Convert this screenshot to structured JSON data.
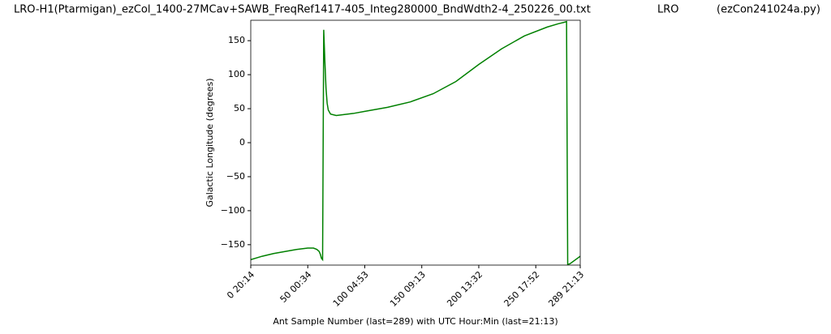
{
  "chart_data": {
    "type": "line",
    "title": "LRO-H1(Ptarmigan)_ezCol_1400-27MCav+SAWB_FreqRef1417-405_Integ280000_BndWdth2-4_250226_00.txt",
    "title_center": "LRO",
    "title_right": "(ezCon241024a.py)",
    "xlabel": "Ant Sample Number (last=289) with UTC Hour:Min (last=21:13)",
    "ylabel": "Galactic Longitude (degrees)",
    "color": "#008000",
    "x": [
      0,
      10,
      20,
      30,
      40,
      50,
      55,
      58,
      60,
      61,
      62,
      63,
      64,
      65,
      66,
      67,
      68,
      70,
      75,
      80,
      90,
      100,
      120,
      140,
      160,
      180,
      200,
      220,
      240,
      260,
      270,
      275,
      277,
      278,
      280,
      289
    ],
    "values": [
      -172,
      -167,
      -163,
      -160,
      -157,
      -155,
      -155,
      -157,
      -160,
      -164,
      -170,
      -172,
      166,
      120,
      80,
      58,
      48,
      42,
      40,
      41,
      43,
      46,
      52,
      60,
      72,
      90,
      115,
      138,
      157,
      170,
      175,
      177,
      178,
      -179,
      -178,
      -167
    ],
    "xlim": [
      0,
      289
    ],
    "xticks": [
      {
        "value": 0,
        "label": "0 20:14"
      },
      {
        "value": 50,
        "label": "50 00:34"
      },
      {
        "value": 100,
        "label": "100 04:53"
      },
      {
        "value": 150,
        "label": "150 09:13"
      },
      {
        "value": 200,
        "label": "200 13:32"
      },
      {
        "value": 250,
        "label": "250 17:52"
      },
      {
        "value": 289,
        "label": "289 21:13"
      }
    ],
    "ylim": [
      -180,
      180
    ],
    "yticks": [
      {
        "value": -150,
        "label": "−150"
      },
      {
        "value": -100,
        "label": "−100"
      },
      {
        "value": -50,
        "label": "−50"
      },
      0,
      50,
      100,
      150
    ]
  }
}
